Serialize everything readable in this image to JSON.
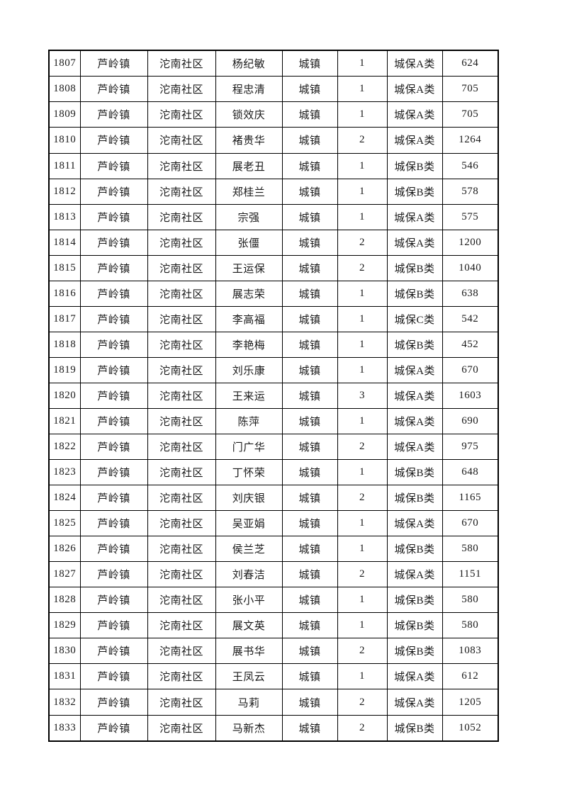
{
  "page": {
    "background_color": "#ffffff",
    "text_color": "#1a1a1a",
    "border_color": "#000000"
  },
  "table": {
    "column_keys": [
      "serial_number",
      "town",
      "community",
      "name",
      "household_type",
      "person_count",
      "category",
      "amount"
    ],
    "rows": [
      [
        "1807",
        "芦岭镇",
        "沱南社区",
        "杨纪敏",
        "城镇",
        "1",
        "城保A类",
        "624"
      ],
      [
        "1808",
        "芦岭镇",
        "沱南社区",
        "程忠清",
        "城镇",
        "1",
        "城保A类",
        "705"
      ],
      [
        "1809",
        "芦岭镇",
        "沱南社区",
        "锁效庆",
        "城镇",
        "1",
        "城保A类",
        "705"
      ],
      [
        "1810",
        "芦岭镇",
        "沱南社区",
        "褚贵华",
        "城镇",
        "2",
        "城保A类",
        "1264"
      ],
      [
        "1811",
        "芦岭镇",
        "沱南社区",
        "展老丑",
        "城镇",
        "1",
        "城保B类",
        "546"
      ],
      [
        "1812",
        "芦岭镇",
        "沱南社区",
        "郑桂兰",
        "城镇",
        "1",
        "城保B类",
        "578"
      ],
      [
        "1813",
        "芦岭镇",
        "沱南社区",
        "宗强",
        "城镇",
        "1",
        "城保A类",
        "575"
      ],
      [
        "1814",
        "芦岭镇",
        "沱南社区",
        "张僵",
        "城镇",
        "2",
        "城保A类",
        "1200"
      ],
      [
        "1815",
        "芦岭镇",
        "沱南社区",
        "王运保",
        "城镇",
        "2",
        "城保B类",
        "1040"
      ],
      [
        "1816",
        "芦岭镇",
        "沱南社区",
        "展志荣",
        "城镇",
        "1",
        "城保B类",
        "638"
      ],
      [
        "1817",
        "芦岭镇",
        "沱南社区",
        "李高福",
        "城镇",
        "1",
        "城保C类",
        "542"
      ],
      [
        "1818",
        "芦岭镇",
        "沱南社区",
        "李艳梅",
        "城镇",
        "1",
        "城保B类",
        "452"
      ],
      [
        "1819",
        "芦岭镇",
        "沱南社区",
        "刘乐康",
        "城镇",
        "1",
        "城保A类",
        "670"
      ],
      [
        "1820",
        "芦岭镇",
        "沱南社区",
        "王来运",
        "城镇",
        "3",
        "城保A类",
        "1603"
      ],
      [
        "1821",
        "芦岭镇",
        "沱南社区",
        "陈萍",
        "城镇",
        "1",
        "城保A类",
        "690"
      ],
      [
        "1822",
        "芦岭镇",
        "沱南社区",
        "门广华",
        "城镇",
        "2",
        "城保A类",
        "975"
      ],
      [
        "1823",
        "芦岭镇",
        "沱南社区",
        "丁怀荣",
        "城镇",
        "1",
        "城保B类",
        "648"
      ],
      [
        "1824",
        "芦岭镇",
        "沱南社区",
        "刘庆银",
        "城镇",
        "2",
        "城保B类",
        "1165"
      ],
      [
        "1825",
        "芦岭镇",
        "沱南社区",
        "吴亚娟",
        "城镇",
        "1",
        "城保A类",
        "670"
      ],
      [
        "1826",
        "芦岭镇",
        "沱南社区",
        "侯兰芝",
        "城镇",
        "1",
        "城保B类",
        "580"
      ],
      [
        "1827",
        "芦岭镇",
        "沱南社区",
        "刘春洁",
        "城镇",
        "2",
        "城保A类",
        "1151"
      ],
      [
        "1828",
        "芦岭镇",
        "沱南社区",
        "张小平",
        "城镇",
        "1",
        "城保B类",
        "580"
      ],
      [
        "1829",
        "芦岭镇",
        "沱南社区",
        "展文英",
        "城镇",
        "1",
        "城保B类",
        "580"
      ],
      [
        "1830",
        "芦岭镇",
        "沱南社区",
        "展书华",
        "城镇",
        "2",
        "城保B类",
        "1083"
      ],
      [
        "1831",
        "芦岭镇",
        "沱南社区",
        "王凤云",
        "城镇",
        "1",
        "城保A类",
        "612"
      ],
      [
        "1832",
        "芦岭镇",
        "沱南社区",
        "马莉",
        "城镇",
        "2",
        "城保A类",
        "1205"
      ],
      [
        "1833",
        "芦岭镇",
        "沱南社区",
        "马新杰",
        "城镇",
        "2",
        "城保B类",
        "1052"
      ]
    ]
  }
}
